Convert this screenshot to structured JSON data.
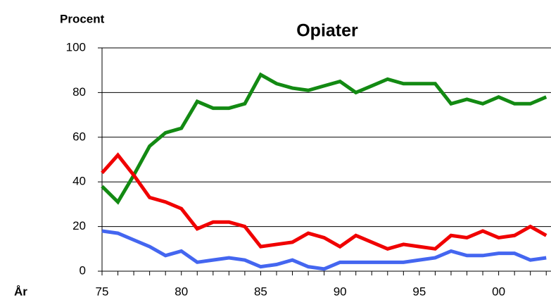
{
  "chart_data": {
    "type": "line",
    "title": "Opiater",
    "y_label": "Procent",
    "x_label": "År",
    "x": [
      1975,
      1976,
      1977,
      1978,
      1979,
      1980,
      1981,
      1982,
      1983,
      1984,
      1985,
      1986,
      1987,
      1988,
      1989,
      1990,
      1991,
      1992,
      1993,
      1994,
      1995,
      1996,
      1997,
      1998,
      1999,
      2000,
      2001,
      2002,
      2003
    ],
    "series": [
      {
        "color": "#138a13",
        "values": [
          38,
          31,
          43,
          56,
          62,
          64,
          76,
          73,
          73,
          75,
          88,
          84,
          82,
          81,
          83,
          85,
          80,
          83,
          86,
          84,
          84,
          84,
          75,
          77,
          75,
          78,
          75,
          75,
          78
        ]
      },
      {
        "color": "#f00000",
        "values": [
          44,
          52,
          43,
          33,
          31,
          28,
          19,
          22,
          22,
          20,
          11,
          12,
          13,
          17,
          15,
          11,
          16,
          13,
          10,
          12,
          11,
          10,
          16,
          15,
          18,
          15,
          16,
          20,
          16
        ]
      },
      {
        "color": "#4466f0",
        "values": [
          18,
          17,
          14,
          11,
          7,
          9,
          4,
          5,
          6,
          5,
          2,
          3,
          5,
          2,
          1,
          4,
          4,
          4,
          4,
          4,
          5,
          6,
          9,
          7,
          7,
          8,
          8,
          5,
          6
        ]
      }
    ],
    "xlim": [
      1975,
      2003.3
    ],
    "xticks": [
      {
        "value": 1975,
        "label": "75"
      },
      {
        "value": 1980,
        "label": "80"
      },
      {
        "value": 1985,
        "label": "85"
      },
      {
        "value": 1990,
        "label": "90"
      },
      {
        "value": 1995,
        "label": "95"
      },
      {
        "value": 2000,
        "label": "00"
      }
    ],
    "ylim": [
      0,
      100
    ],
    "yticks": [
      0,
      20,
      40,
      60,
      80,
      100
    ],
    "grid": true
  }
}
